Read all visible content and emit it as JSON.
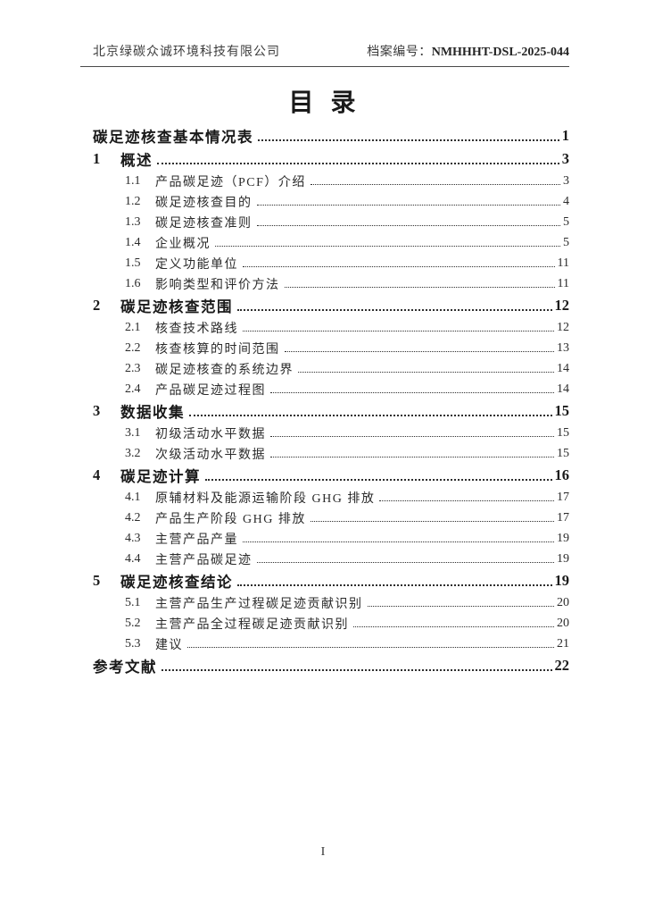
{
  "header": {
    "company": "北京绿碳众诚环境科技有限公司",
    "archive_label": "档案编号：",
    "archive_number": "NMHHHT-DSL-2025-044"
  },
  "title": "目 录",
  "toc": {
    "entries": [
      {
        "num": "",
        "label": "碳足迹核查基本情况表",
        "page": "1",
        "type": "top"
      },
      {
        "num": "1",
        "label": "概述",
        "page": "3",
        "type": "top"
      },
      {
        "num": "1.1",
        "label": "产品碳足迹（PCF）介绍",
        "page": "3",
        "type": "sub"
      },
      {
        "num": "1.2",
        "label": "碳足迹核查目的",
        "page": "4",
        "type": "sub"
      },
      {
        "num": "1.3",
        "label": "碳足迹核查准则",
        "page": "5",
        "type": "sub"
      },
      {
        "num": "1.4",
        "label": "企业概况",
        "page": "5",
        "type": "sub"
      },
      {
        "num": "1.5",
        "label": "定义功能单位",
        "page": "11",
        "type": "sub"
      },
      {
        "num": "1.6",
        "label": "影响类型和评价方法",
        "page": "11",
        "type": "sub"
      },
      {
        "num": "2",
        "label": "碳足迹核查范围",
        "page": "12",
        "type": "top"
      },
      {
        "num": "2.1",
        "label": "核查技术路线",
        "page": "12",
        "type": "sub"
      },
      {
        "num": "2.2",
        "label": "核查核算的时间范围",
        "page": "13",
        "type": "sub"
      },
      {
        "num": "2.3",
        "label": "碳足迹核查的系统边界",
        "page": "14",
        "type": "sub"
      },
      {
        "num": "2.4",
        "label": "产品碳足迹过程图",
        "page": "14",
        "type": "sub"
      },
      {
        "num": "3",
        "label": "数据收集",
        "page": "15",
        "type": "top"
      },
      {
        "num": "3.1",
        "label": "初级活动水平数据",
        "page": "15",
        "type": "sub"
      },
      {
        "num": "3.2",
        "label": "次级活动水平数据",
        "page": "15",
        "type": "sub"
      },
      {
        "num": "4",
        "label": "碳足迹计算",
        "page": "16",
        "type": "top"
      },
      {
        "num": "4.1",
        "label": "原辅材料及能源运输阶段 GHG 排放",
        "page": "17",
        "type": "sub"
      },
      {
        "num": "4.2",
        "label": "产品生产阶段 GHG 排放",
        "page": "17",
        "type": "sub"
      },
      {
        "num": "4.3",
        "label": "主营产品产量",
        "page": "19",
        "type": "sub"
      },
      {
        "num": "4.4",
        "label": "主营产品碳足迹",
        "page": "19",
        "type": "sub"
      },
      {
        "num": "5",
        "label": "碳足迹核查结论",
        "page": "19",
        "type": "top"
      },
      {
        "num": "5.1",
        "label": "主营产品生产过程碳足迹贡献识别",
        "page": "20",
        "type": "sub"
      },
      {
        "num": "5.2",
        "label": "主营产品全过程碳足迹贡献识别",
        "page": "20",
        "type": "sub"
      },
      {
        "num": "5.3",
        "label": "建议",
        "page": "21",
        "type": "sub"
      },
      {
        "num": "",
        "label": "参考文献",
        "page": "22",
        "type": "top"
      }
    ]
  },
  "footer": {
    "page_number": "I"
  },
  "colors": {
    "text": "#1f1f1f",
    "header_text": "#3d3d3d",
    "rule": "#4a4a4a",
    "dots": "#2e2e2e"
  }
}
